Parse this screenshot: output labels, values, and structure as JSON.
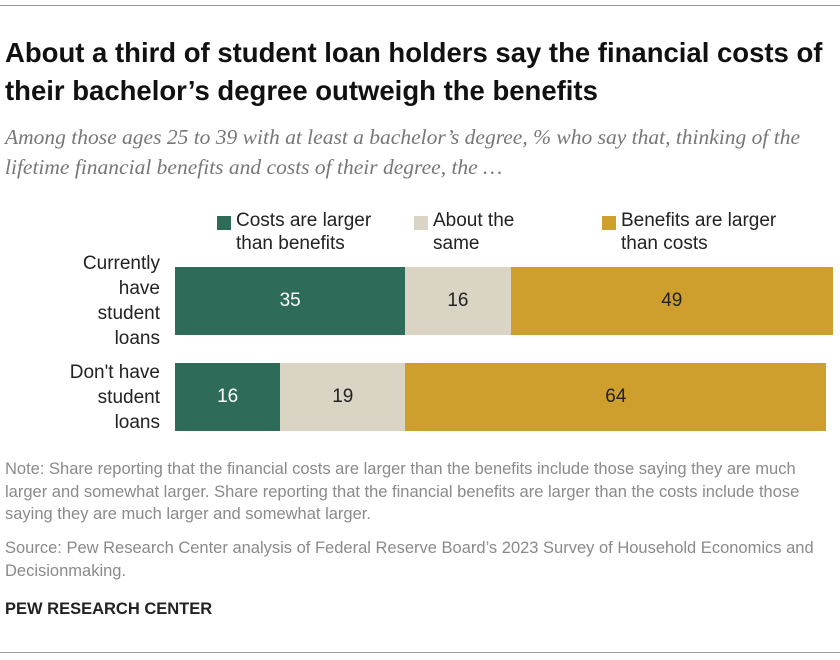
{
  "chart_data": {
    "type": "bar",
    "title": "About a third of student loan holders say the financial costs of their bachelor’s degree outweigh the benefits",
    "subtitle": "Among those ages 25 to 39 with at least a bachelor’s degree, % who say that, thinking of the lifetime financial benefits and costs of their degree, the …",
    "categories": [
      "Currently have student loans",
      "Don't have student loans"
    ],
    "series": [
      {
        "name": "Costs are larger than benefits",
        "color": "#2e6b59",
        "values": [
          35,
          16
        ]
      },
      {
        "name": "About the same",
        "color": "#d9d4c3",
        "values": [
          16,
          19
        ]
      },
      {
        "name": "Benefits are larger than costs",
        "color": "#cf9f2d",
        "values": [
          49,
          64
        ]
      }
    ],
    "note": "Note: Share reporting that the financial costs are larger than the benefits include those saying they are much larger and somewhat larger. Share reporting that the financial benefits are larger than the costs include those saying they are much larger and somewhat larger.",
    "source": "Source: Pew Research Center analysis of Federal Reserve Board’s 2023 Survey of Household Economics and Decisionmaking.",
    "footer": "PEW RESEARCH CENTER"
  }
}
